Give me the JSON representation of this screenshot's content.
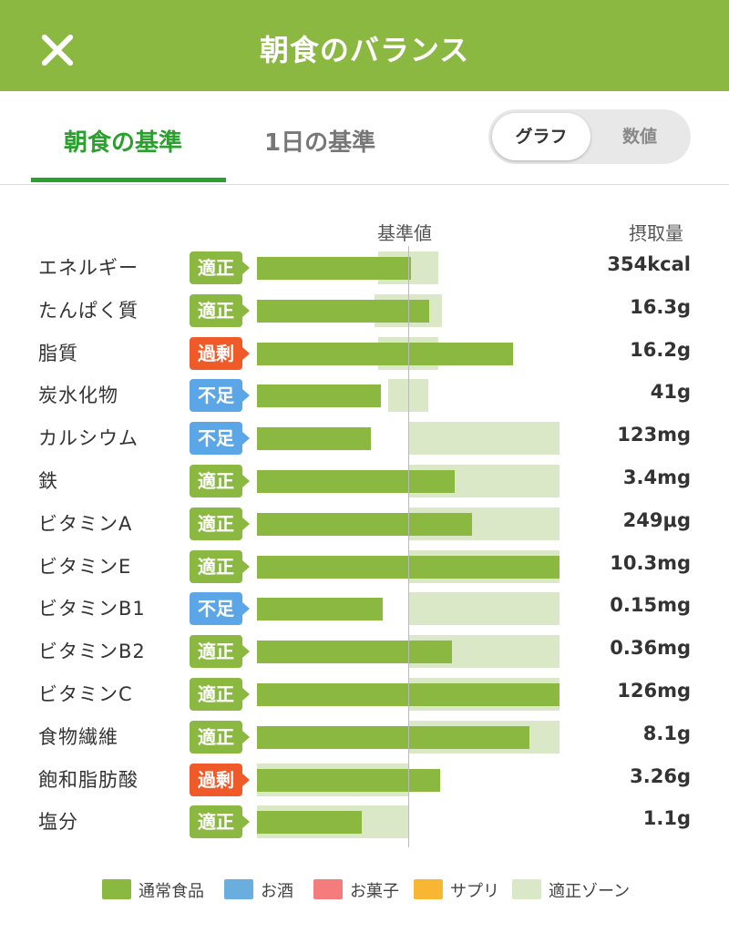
{
  "header": {
    "title": "朝食のバランス"
  },
  "tabs": [
    {
      "label": "朝食の基準",
      "active": true
    },
    {
      "label": "1日の基準",
      "active": false
    }
  ],
  "view_toggle": {
    "graph_label": "グラフ",
    "values_label": "数値",
    "selected": "グラフ"
  },
  "columns": {
    "reference": "基準値",
    "intake": "摂取量"
  },
  "colors": {
    "normal_food": "#8ab840",
    "alcohol": "#6aaee0",
    "snacks": "#f47c7c",
    "supplements": "#f7b733",
    "zone": "#dbe8c8",
    "status_ok": "#8ab840",
    "status_excess": "#f05a28",
    "status_low": "#5aa6e6"
  },
  "nutrients": [
    {
      "name": "エネルギー",
      "status": "適正",
      "status_type": "ok",
      "value": "354kcal",
      "bar_ratio": 1.02,
      "zone": [
        0.8,
        1.2
      ]
    },
    {
      "name": "たんぱく質",
      "status": "適正",
      "status_type": "ok",
      "value": "16.3g",
      "bar_ratio": 1.14,
      "zone": [
        0.78,
        1.22
      ]
    },
    {
      "name": "脂質",
      "status": "過剰",
      "status_type": "excess",
      "value": "16.2g",
      "bar_ratio": 1.69,
      "zone": [
        0.8,
        1.2
      ]
    },
    {
      "name": "炭水化物",
      "status": "不足",
      "status_type": "low",
      "value": "41g",
      "bar_ratio": 0.82,
      "zone": [
        0.87,
        1.13
      ]
    },
    {
      "name": "カルシウム",
      "status": "不足",
      "status_type": "low",
      "value": "123mg",
      "bar_ratio": 0.75,
      "zone": [
        1.0,
        2.0
      ]
    },
    {
      "name": "鉄",
      "status": "適正",
      "status_type": "ok",
      "value": "3.4mg",
      "bar_ratio": 1.31,
      "zone": [
        1.0,
        2.0
      ]
    },
    {
      "name": "ビタミンA",
      "status": "適正",
      "status_type": "ok",
      "value": "249μg",
      "bar_ratio": 1.42,
      "zone": [
        1.0,
        2.0
      ]
    },
    {
      "name": "ビタミンE",
      "status": "適正",
      "status_type": "ok",
      "value": "10.3mg",
      "bar_ratio": 2.0,
      "zone": [
        1.0,
        2.0
      ]
    },
    {
      "name": "ビタミンB1",
      "status": "不足",
      "status_type": "low",
      "value": "0.15mg",
      "bar_ratio": 0.83,
      "zone": [
        1.0,
        2.0
      ]
    },
    {
      "name": "ビタミンB2",
      "status": "適正",
      "status_type": "ok",
      "value": "0.36mg",
      "bar_ratio": 1.29,
      "zone": [
        1.0,
        2.0
      ]
    },
    {
      "name": "ビタミンC",
      "status": "適正",
      "status_type": "ok",
      "value": "126mg",
      "bar_ratio": 2.0,
      "zone": [
        1.0,
        2.0
      ]
    },
    {
      "name": "食物繊維",
      "status": "適正",
      "status_type": "ok",
      "value": "8.1g",
      "bar_ratio": 1.8,
      "zone": [
        1.0,
        2.0
      ]
    },
    {
      "name": "飽和脂肪酸",
      "status": "過剰",
      "status_type": "excess",
      "value": "3.26g",
      "bar_ratio": 1.21,
      "zone": [
        0.0,
        1.0
      ]
    },
    {
      "name": "塩分",
      "status": "適正",
      "status_type": "ok",
      "value": "1.1g",
      "bar_ratio": 0.69,
      "zone": [
        0.0,
        1.0
      ]
    }
  ],
  "legend": [
    {
      "label": "通常食品",
      "color": "#8ab840"
    },
    {
      "label": "お酒",
      "color": "#6aaee0"
    },
    {
      "label": "お菓子",
      "color": "#f47c7c"
    },
    {
      "label": "サプリ",
      "color": "#f7b733"
    },
    {
      "label": "適正ゾーン",
      "color": "#dbe8c8"
    }
  ]
}
